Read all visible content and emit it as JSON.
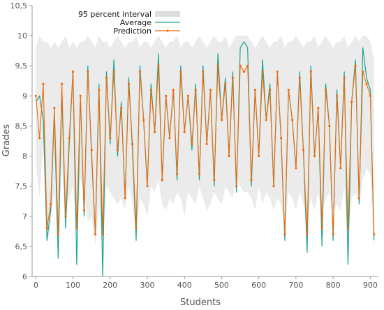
{
  "chart_data": {
    "type": "line",
    "title": "",
    "xlabel": "Students",
    "ylabel": "Grades",
    "xlim": [
      -10,
      920
    ],
    "ylim": [
      6,
      10.5
    ],
    "x_ticks": [
      0,
      100,
      200,
      300,
      400,
      500,
      600,
      700,
      800,
      900
    ],
    "x_tick_labels": [
      "0",
      "100",
      "200",
      "300",
      "400",
      "500",
      "600",
      "700",
      "800",
      "900"
    ],
    "y_ticks": [
      6,
      6.5,
      7,
      7.5,
      8,
      8.5,
      9,
      9.5,
      10,
      10.5
    ],
    "y_tick_labels": [
      "6",
      "6,5",
      "7",
      "7,5",
      "8",
      "8,5",
      "9",
      "9,5",
      "10",
      "10,5"
    ],
    "grid": false,
    "legend_position": "top-left",
    "x": [
      0,
      10,
      20,
      30,
      40,
      50,
      60,
      70,
      80,
      90,
      100,
      110,
      120,
      130,
      140,
      150,
      160,
      170,
      180,
      190,
      200,
      210,
      220,
      230,
      240,
      250,
      260,
      270,
      280,
      290,
      300,
      310,
      320,
      330,
      340,
      350,
      360,
      370,
      380,
      390,
      400,
      410,
      420,
      430,
      440,
      450,
      460,
      470,
      480,
      490,
      500,
      510,
      520,
      530,
      540,
      550,
      560,
      570,
      580,
      590,
      600,
      610,
      620,
      630,
      640,
      650,
      660,
      670,
      680,
      690,
      700,
      710,
      720,
      730,
      740,
      750,
      760,
      770,
      780,
      790,
      800,
      810,
      820,
      830,
      840,
      850,
      860,
      870,
      880,
      890,
      900,
      910
    ],
    "series": [
      {
        "name": "95 percent interval",
        "kind": "band",
        "color": "#dddddd",
        "lower": [
          7.9,
          7.3,
          8.2,
          6.5,
          6.9,
          7.4,
          6.6,
          7.8,
          7.0,
          7.3,
          7.5,
          6.8,
          7.6,
          7.4,
          6.9,
          7.0,
          6.5,
          7.2,
          6.4,
          7.5,
          7.4,
          7.3,
          7.2,
          7.3,
          7.1,
          7.5,
          7.2,
          6.7,
          7.3,
          7.2,
          7.0,
          7.5,
          7.4,
          7.6,
          7.2,
          7.1,
          7.3,
          7.2,
          7.4,
          7.3,
          7.0,
          7.4,
          7.3,
          7.2,
          7.5,
          7.3,
          7.1,
          7.2,
          7.4,
          7.3,
          7.2,
          7.5,
          7.4,
          7.3,
          7.6,
          7.5,
          7.4,
          7.4,
          7.3,
          7.1,
          7.5,
          7.2,
          7.4,
          7.3,
          7.1,
          7.3,
          7.2,
          6.8,
          7.4,
          7.3,
          7.1,
          7.4,
          7.2,
          6.9,
          7.3,
          7.1,
          7.4,
          7.0,
          7.3,
          7.4,
          7.1,
          7.2,
          7.1,
          7.5,
          6.6,
          7.3,
          7.4,
          7.2,
          7.6,
          7.8,
          7.7,
          6.4
        ],
        "upper": [
          9.8,
          10.0,
          9.9,
          9.9,
          9.8,
          9.9,
          9.8,
          9.9,
          10.0,
          9.8,
          9.9,
          9.8,
          9.9,
          9.9,
          10.0,
          9.9,
          9.8,
          10.0,
          9.9,
          9.9,
          9.8,
          9.9,
          10.0,
          9.9,
          9.8,
          9.9,
          9.9,
          10.0,
          9.8,
          9.9,
          9.9,
          9.8,
          9.9,
          10.0,
          9.9,
          9.8,
          9.9,
          9.9,
          10.0,
          9.8,
          9.9,
          9.9,
          9.8,
          9.9,
          10.0,
          9.9,
          9.8,
          9.9,
          10.0,
          9.9,
          9.9,
          10.0,
          9.8,
          9.9,
          10.0,
          10.0,
          10.0,
          10.0,
          9.9,
          9.8,
          9.9,
          10.0,
          9.9,
          9.8,
          9.9,
          9.9,
          10.0,
          9.8,
          9.9,
          9.9,
          10.0,
          9.9,
          9.8,
          9.9,
          9.9,
          10.0,
          9.8,
          9.9,
          10.0,
          9.9,
          9.8,
          9.9,
          9.9,
          10.0,
          9.8,
          9.9,
          10.0,
          9.9,
          10.0,
          10.0,
          9.9,
          9.6
        ]
      },
      {
        "name": "Average",
        "kind": "line",
        "color": "#1aa58c",
        "values": [
          8.9,
          9.0,
          8.6,
          6.6,
          7.1,
          8.7,
          6.3,
          9.1,
          6.8,
          8.2,
          9.4,
          6.2,
          9.0,
          7.0,
          9.5,
          8.0,
          6.7,
          9.2,
          6.0,
          9.4,
          8.2,
          9.6,
          8.0,
          8.9,
          7.3,
          9.3,
          8.1,
          6.6,
          9.5,
          8.6,
          7.5,
          9.2,
          8.4,
          9.7,
          7.6,
          9.0,
          8.3,
          9.1,
          7.6,
          9.5,
          8.4,
          9.0,
          8.1,
          9.2,
          7.6,
          9.5,
          8.2,
          9.1,
          7.5,
          9.7,
          8.6,
          9.3,
          8.0,
          9.4,
          7.4,
          9.8,
          9.9,
          9.8,
          7.5,
          9.1,
          8.0,
          9.6,
          8.6,
          9.2,
          7.5,
          9.4,
          8.3,
          6.6,
          9.1,
          8.6,
          7.8,
          9.4,
          8.1,
          6.4,
          9.5,
          8.0,
          8.8,
          6.5,
          9.2,
          8.5,
          6.6,
          9.1,
          7.8,
          9.4,
          6.2,
          8.9,
          9.6,
          7.2,
          9.8,
          9.3,
          9.1,
          6.6
        ]
      },
      {
        "name": "Prediction",
        "kind": "line-marker",
        "color": "#f06b0e",
        "values": [
          9.0,
          8.3,
          9.2,
          6.8,
          7.2,
          8.8,
          6.7,
          9.2,
          7.0,
          8.3,
          9.4,
          6.8,
          9.0,
          7.1,
          9.4,
          8.1,
          6.7,
          9.1,
          6.7,
          9.3,
          8.3,
          9.4,
          8.1,
          8.8,
          7.3,
          9.2,
          8.2,
          6.8,
          9.4,
          8.6,
          7.5,
          9.1,
          8.4,
          9.5,
          7.6,
          9.0,
          8.3,
          9.1,
          7.7,
          9.4,
          8.4,
          9.0,
          8.2,
          9.1,
          7.7,
          9.4,
          8.2,
          9.1,
          7.6,
          9.5,
          8.6,
          9.2,
          8.0,
          9.3,
          7.5,
          9.5,
          9.4,
          9.5,
          7.6,
          9.1,
          8.0,
          9.4,
          8.6,
          9.1,
          7.5,
          9.4,
          8.3,
          6.7,
          9.1,
          8.6,
          7.8,
          9.3,
          8.1,
          6.7,
          9.4,
          8.0,
          8.8,
          6.8,
          9.1,
          8.5,
          6.7,
          9.0,
          7.8,
          9.3,
          6.8,
          8.9,
          9.5,
          7.3,
          9.4,
          9.2,
          9.0,
          6.7
        ]
      }
    ]
  }
}
